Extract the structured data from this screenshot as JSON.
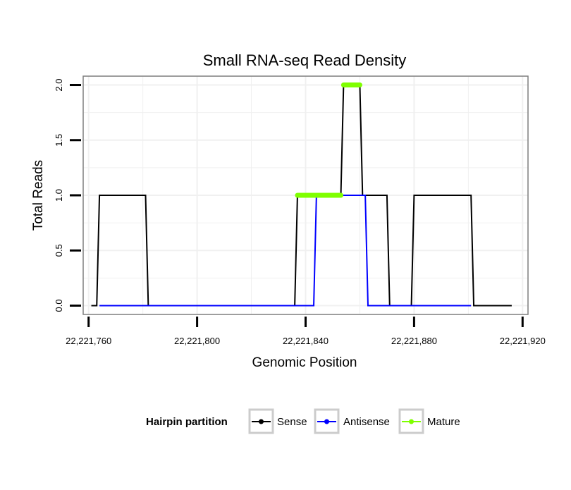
{
  "chart_data": {
    "type": "line",
    "title": "Small RNA-seq Read Density",
    "xlabel": "Genomic Position",
    "ylabel": "Total Reads",
    "xlim": [
      22221758,
      22221922
    ],
    "ylim": [
      -0.08,
      2.08
    ],
    "x_ticks": [
      22221760,
      22221800,
      22221840,
      22221880,
      22221920
    ],
    "x_tick_labels": [
      "22,221,760",
      "22,221,800",
      "22,221,840",
      "22,221,880",
      "22,221,920"
    ],
    "y_ticks": [
      0,
      0.5,
      1,
      1.5,
      2
    ],
    "y_tick_labels": [
      "0.0",
      "0.5",
      "1.0",
      "1.5",
      "2.0"
    ],
    "grid": true,
    "legend": {
      "title": "Hairpin partition",
      "placement": "bottom",
      "entries": [
        "Sense",
        "Antisense",
        "Mature"
      ]
    },
    "series": [
      {
        "name": "Sense",
        "color": "#000000",
        "x": [
          22221761,
          22221763,
          22221764,
          22221781,
          22221782,
          22221836,
          22221837,
          22221853,
          22221854,
          22221860,
          22221861,
          22221870,
          22221871,
          22221879,
          22221880,
          22221901,
          22221902,
          22221916
        ],
        "y": [
          0,
          0,
          1,
          1,
          0,
          0,
          1,
          1,
          2,
          2,
          1,
          1,
          0,
          0,
          1,
          1,
          0,
          0
        ]
      },
      {
        "name": "Antisense",
        "color": "#0000ff",
        "x": [
          22221764,
          22221843,
          22221844,
          22221862,
          22221863,
          22221901
        ],
        "y": [
          0,
          0,
          1,
          1,
          0,
          0
        ]
      },
      {
        "name": "Mature",
        "color": "#7fff00",
        "segments": [
          {
            "x": [
              22221837,
              22221853
            ],
            "y": [
              1,
              1
            ]
          },
          {
            "x": [
              22221854,
              22221860
            ],
            "y": [
              2,
              2
            ]
          }
        ]
      }
    ]
  }
}
